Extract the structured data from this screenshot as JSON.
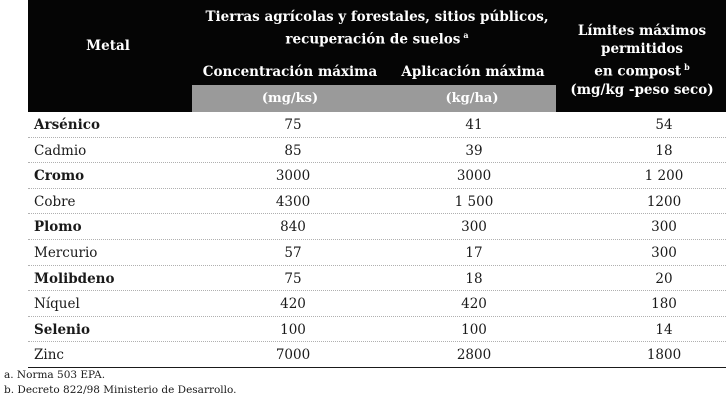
{
  "header": {
    "metal": "Metal",
    "group_line1": "Tierras agrícolas y forestales, sitios públicos,",
    "group_line2": "recuperación de suelos",
    "group_mark": "a",
    "concentration": "Concentración máxima",
    "application": "Aplicación máxima",
    "limit_line1": "Límites máximos permitidos",
    "limit_line2": "en compost",
    "limit_mark": "b",
    "limit_line3": "(mg/kg -peso seco)",
    "unit_concentration": "(mg/ks)",
    "unit_application": "(kg/ha)"
  },
  "rows": [
    {
      "metal": "Arsénico",
      "conc": "75",
      "apl": "41",
      "limit": "54"
    },
    {
      "metal": "Cadmio",
      "conc": "85",
      "apl": "39",
      "limit": "18"
    },
    {
      "metal": "Cromo",
      "conc": "3000",
      "apl": "3000",
      "limit": "1 200"
    },
    {
      "metal": "Cobre",
      "conc": "4300",
      "apl": "1 500",
      "limit": "1200"
    },
    {
      "metal": "Plomo",
      "conc": "840",
      "apl": "300",
      "limit": "300"
    },
    {
      "metal": "Mercurio",
      "conc": "57",
      "apl": "17",
      "limit": "300"
    },
    {
      "metal": "Molibdeno",
      "conc": "75",
      "apl": "18",
      "limit": "20"
    },
    {
      "metal": "Níquel",
      "conc": "420",
      "apl": "420",
      "limit": "180"
    },
    {
      "metal": "Selenio",
      "conc": "100",
      "apl": "100",
      "limit": "14"
    },
    {
      "metal": "Zinc",
      "conc": "7000",
      "apl": "2800",
      "limit": "1800"
    }
  ],
  "footnotes": [
    "a. Norma 503 EPA.",
    "b. Decreto 822/98 Ministerio de Desarrollo."
  ]
}
